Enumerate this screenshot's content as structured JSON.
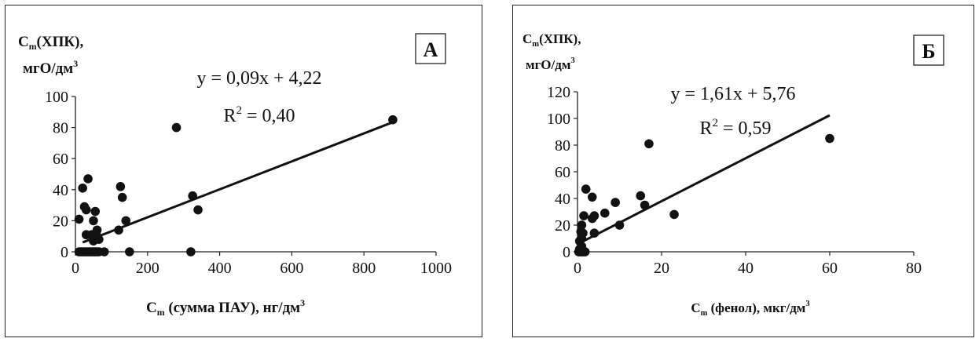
{
  "chart_data": [
    {
      "type": "scatter",
      "panel_label": "А",
      "ylabel_line1": "C",
      "ylabel_sub": "m",
      "ylabel_rest": "(ХПК),",
      "ylabel_line2": "мгО/дм",
      "ylabel_line2_sup": "3",
      "xlabel_main": "C",
      "xlabel_sub": "m",
      "xlabel_rest": " (сумма ПАУ), нг/дм",
      "xlabel_sup": "3",
      "xlim": [
        0,
        1000
      ],
      "ylim": [
        0,
        100
      ],
      "xticks": [
        "0",
        "200",
        "400",
        "600",
        "800",
        "1000"
      ],
      "yticks": [
        "0",
        "20",
        "40",
        "60",
        "80",
        "100"
      ],
      "equation": "y = 0,09x + 4,22",
      "r2_prefix": "R",
      "r2_sup": "2",
      "r2_value": " = 0,40",
      "trendline": {
        "slope": 0.09,
        "intercept": 4.22,
        "x": [
          20,
          880
        ]
      },
      "points": [
        [
          10,
          0
        ],
        [
          15,
          0
        ],
        [
          20,
          0
        ],
        [
          25,
          0
        ],
        [
          30,
          0
        ],
        [
          35,
          0
        ],
        [
          40,
          0
        ],
        [
          45,
          0
        ],
        [
          50,
          0
        ],
        [
          55,
          0
        ],
        [
          60,
          0
        ],
        [
          65,
          0
        ],
        [
          80,
          0
        ],
        [
          150,
          0
        ],
        [
          320,
          0
        ],
        [
          10,
          21
        ],
        [
          20,
          41
        ],
        [
          25,
          29
        ],
        [
          30,
          27
        ],
        [
          35,
          47
        ],
        [
          30,
          11
        ],
        [
          45,
          11
        ],
        [
          50,
          7
        ],
        [
          55,
          26
        ],
        [
          60,
          14
        ],
        [
          60,
          10
        ],
        [
          65,
          8
        ],
        [
          50,
          20
        ],
        [
          120,
          14
        ],
        [
          125,
          42
        ],
        [
          130,
          35
        ],
        [
          140,
          20
        ],
        [
          280,
          80
        ],
        [
          325,
          36
        ],
        [
          340,
          27
        ],
        [
          880,
          85
        ]
      ]
    },
    {
      "type": "scatter",
      "panel_label": "Б",
      "ylabel_line1": "C",
      "ylabel_sub": "m",
      "ylabel_rest": "(ХПК),",
      "ylabel_line2": "мгО/дм",
      "ylabel_line2_sup": "3",
      "xlabel_main": "C",
      "xlabel_sub": "m",
      "xlabel_rest": " (фенол), мкг/дм",
      "xlabel_sup": "3",
      "xlim": [
        0,
        80
      ],
      "ylim": [
        0,
        120
      ],
      "xticks": [
        "0",
        "20",
        "40",
        "60",
        "80"
      ],
      "yticks": [
        "0",
        "20",
        "40",
        "60",
        "80",
        "100",
        "120"
      ],
      "equation": "y = 1,61x + 5,76",
      "r2_prefix": "R",
      "r2_sup": "2",
      "r2_value": " = 0,59",
      "trendline": {
        "slope": 1.61,
        "intercept": 5.76,
        "x": [
          0.5,
          60
        ]
      },
      "points": [
        [
          0.3,
          0
        ],
        [
          0.6,
          0
        ],
        [
          0.9,
          0
        ],
        [
          1.2,
          0
        ],
        [
          1.5,
          0
        ],
        [
          1.8,
          0
        ],
        [
          0.5,
          2
        ],
        [
          1.0,
          4
        ],
        [
          0.5,
          8
        ],
        [
          1.0,
          10
        ],
        [
          1.3,
          14
        ],
        [
          0.8,
          15
        ],
        [
          1.0,
          20
        ],
        [
          1.5,
          27
        ],
        [
          2.0,
          47
        ],
        [
          3.5,
          41
        ],
        [
          3.5,
          25
        ],
        [
          4.0,
          27
        ],
        [
          4.0,
          14
        ],
        [
          6.5,
          29
        ],
        [
          9.0,
          37
        ],
        [
          10.0,
          20
        ],
        [
          15.0,
          42
        ],
        [
          16.0,
          35
        ],
        [
          17.0,
          81
        ],
        [
          23.0,
          28
        ],
        [
          60.0,
          85
        ]
      ]
    }
  ]
}
